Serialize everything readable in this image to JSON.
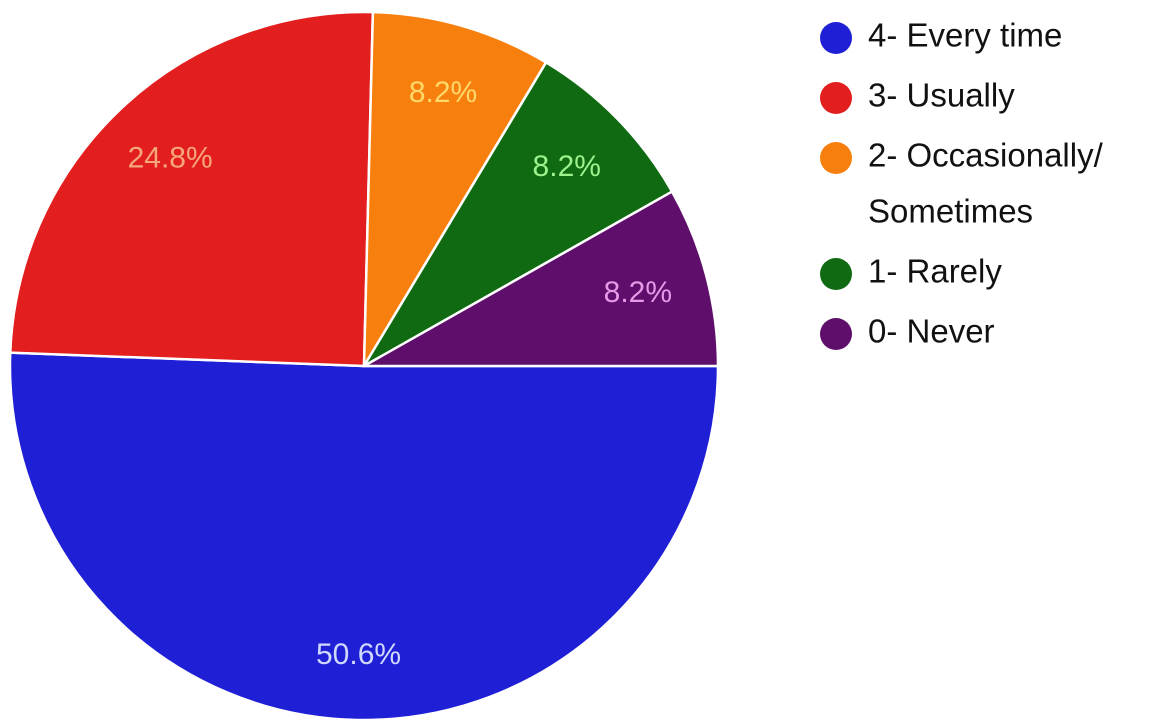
{
  "chart_data": {
    "type": "pie",
    "title": "",
    "legend_position": "right",
    "series": [
      {
        "name": "4- Every time",
        "value": 50.6,
        "label": "50.6%",
        "color": "#1f1fd6",
        "label_color": "#cfd8ff"
      },
      {
        "name": "3- Usually",
        "value": 24.8,
        "label": "24.8%",
        "color": "#e31e1e",
        "label_color": "#f5a77a"
      },
      {
        "name": "2- Occasionally/ Sometimes",
        "value": 8.2,
        "label": "8.2%",
        "color": "#f77f0e",
        "label_color": "#ffd86a"
      },
      {
        "name": "1- Rarely",
        "value": 8.2,
        "label": "8.2%",
        "color": "#0f6a11",
        "label_color": "#9df28d"
      },
      {
        "name": "0- Never",
        "value": 8.2,
        "label": "8.2%",
        "color": "#5f0f6b",
        "label_color": "#e49ae8"
      }
    ],
    "legend_lines": [
      [
        "4- Every time"
      ],
      [
        "3- Usually"
      ],
      [
        "2- Occasionally/",
        "Sometimes"
      ],
      [
        "1- Rarely"
      ],
      [
        "0- Never"
      ]
    ]
  }
}
